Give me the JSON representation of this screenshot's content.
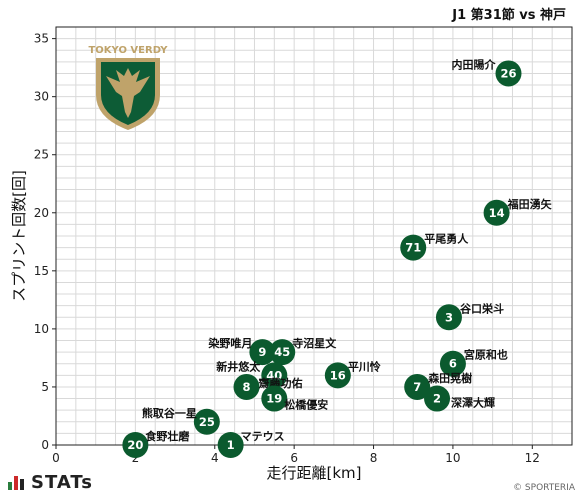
{
  "title": "J1 第31節 vs 神戸",
  "team_logo_text": "TOKYO VERDY",
  "footer": {
    "brand": "STATs",
    "copyright": "© SPORTERIA"
  },
  "colors": {
    "point": "#0b5a2e",
    "grid": "#d9d9d9",
    "logo_gold": "#bfa36a",
    "logo_green": "#0d5c36"
  },
  "chart_data": {
    "type": "scatter",
    "title": "J1 第31節 vs 神戸",
    "xlabel": "走行距離[km]",
    "ylabel": "スプリント回数[回]",
    "xlim": [
      0,
      13
    ],
    "ylim": [
      0,
      36
    ],
    "xticks": [
      0,
      2,
      4,
      6,
      8,
      10,
      12
    ],
    "yticks": [
      0,
      5,
      10,
      15,
      20,
      25,
      30,
      35
    ],
    "grid": true,
    "points": [
      {
        "num": "26",
        "name": "内田陽介",
        "x": 11.4,
        "y": 32
      },
      {
        "num": "14",
        "name": "福田湧矢",
        "x": 11.1,
        "y": 20
      },
      {
        "num": "71",
        "name": "平尾勇人",
        "x": 9.0,
        "y": 17
      },
      {
        "num": "3",
        "name": "谷口栄斗",
        "x": 9.9,
        "y": 11
      },
      {
        "num": "6",
        "name": "宮原和也",
        "x": 10.0,
        "y": 7
      },
      {
        "num": "7",
        "name": "森田晃樹",
        "x": 9.1,
        "y": 5
      },
      {
        "num": "2",
        "name": "深澤大輝",
        "x": 9.6,
        "y": 4
      },
      {
        "num": "16",
        "name": "平川怜",
        "x": 7.1,
        "y": 6
      },
      {
        "num": "9",
        "name": "染野唯月",
        "x": 5.2,
        "y": 8
      },
      {
        "num": "45",
        "name": "寺沼星文",
        "x": 5.7,
        "y": 8
      },
      {
        "num": "40",
        "name": "新井悠太",
        "x": 5.5,
        "y": 6
      },
      {
        "num": "8",
        "name": "齋藤功佑",
        "x": 4.8,
        "y": 5
      },
      {
        "num": "19",
        "name": "松橋優安",
        "x": 5.5,
        "y": 4
      },
      {
        "num": "25",
        "name": "熊取谷一星",
        "x": 3.8,
        "y": 2
      },
      {
        "num": "20",
        "name": "食野壮磨",
        "x": 2.0,
        "y": 0
      },
      {
        "num": "1",
        "name": "マテウス",
        "x": 4.4,
        "y": 0
      }
    ]
  }
}
